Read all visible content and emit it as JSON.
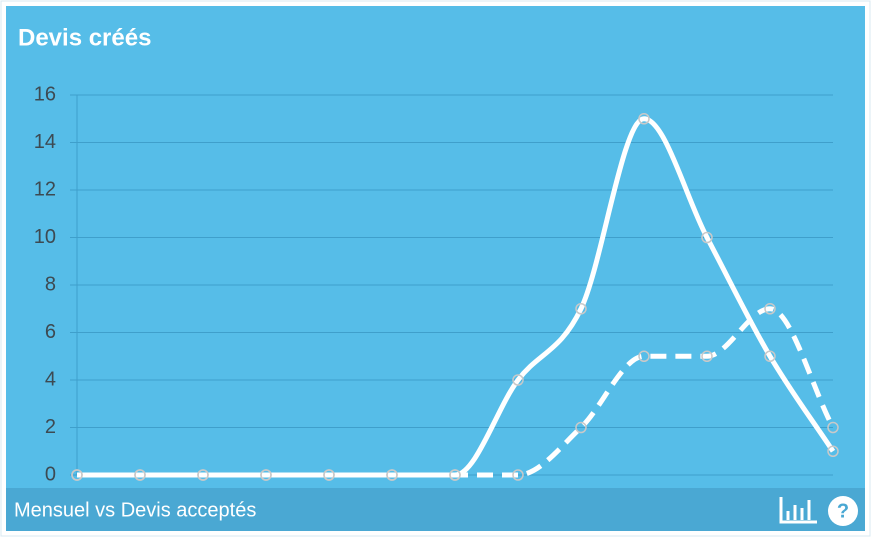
{
  "chart_data": {
    "type": "line",
    "title": "Devis créés",
    "subtitle": "Mensuel vs Devis acceptés",
    "categories": [
      null,
      null,
      null,
      null,
      null,
      null,
      null,
      null,
      null,
      null,
      null,
      null,
      null
    ],
    "series": [
      {
        "color": "#ffffff",
        "dashed": false,
        "values": [
          0,
          0,
          0,
          0,
          0,
          0,
          0,
          4,
          7,
          15,
          10,
          5,
          1
        ]
      },
      {
        "color": "#ffffff",
        "dashed": true,
        "values": [
          0,
          0,
          0,
          0,
          0,
          0,
          0,
          0,
          2,
          5,
          5,
          7,
          2
        ]
      }
    ],
    "ylim": [
      0,
      16
    ],
    "yticks": [
      0,
      2,
      4,
      6,
      8,
      10,
      12,
      14,
      16
    ],
    "grid": true
  }
}
